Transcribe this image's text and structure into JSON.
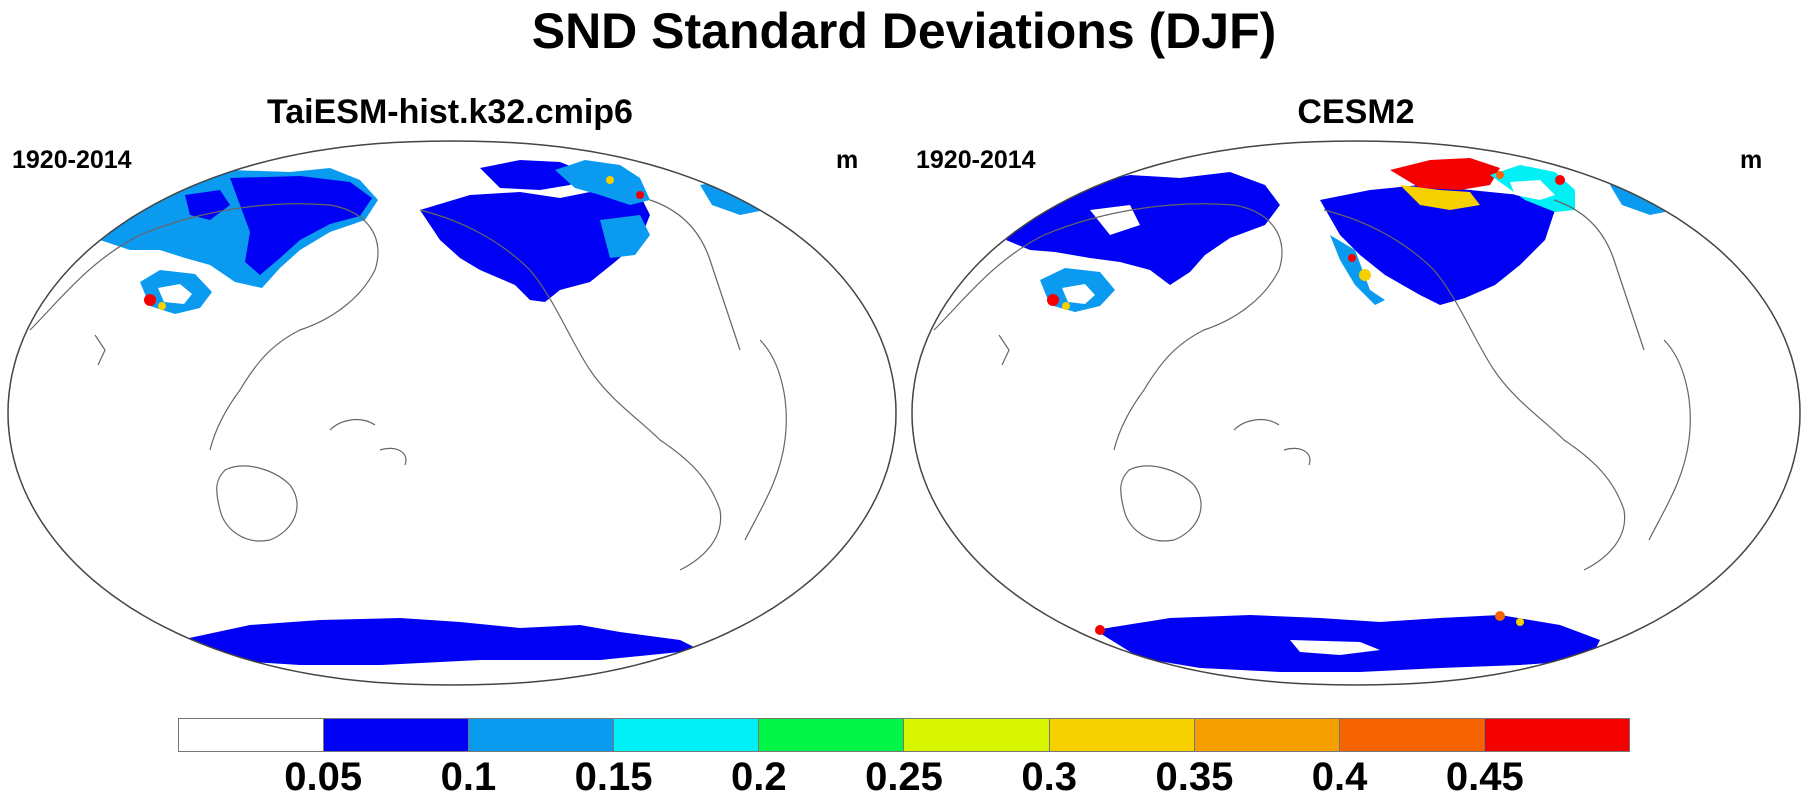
{
  "title": "SND Standard Deviations (DJF)",
  "panels": [
    {
      "title": "TaiESM-hist.k32.cmip6",
      "left_label": "1920-2014",
      "right_label": "m"
    },
    {
      "title": "CESM2",
      "left_label": "1920-2014",
      "right_label": "m"
    }
  ],
  "colorbar": {
    "colors": [
      "#ffffff",
      "#0000f5",
      "#0a9bf0",
      "#00f0f5",
      "#00f547",
      "#d8f500",
      "#f7d000",
      "#f59f00",
      "#f56400",
      "#f50000"
    ],
    "labels": [
      "0.05",
      "0.1",
      "0.15",
      "0.2",
      "0.25",
      "0.3",
      "0.35",
      "0.4",
      "0.45"
    ]
  }
}
